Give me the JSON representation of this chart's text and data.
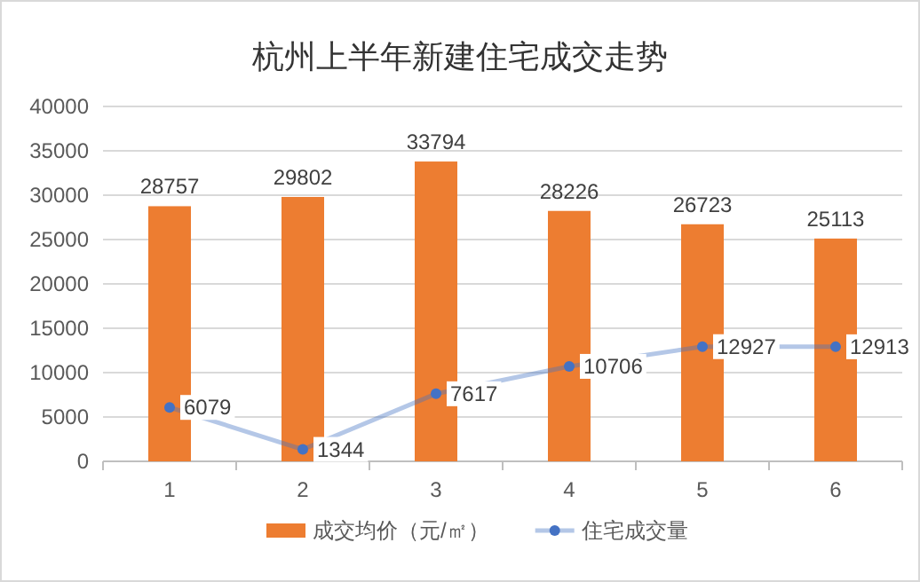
{
  "chart_data": {
    "type": "bar",
    "title": "杭州上半年新建住宅成交走势",
    "categories": [
      "1",
      "2",
      "3",
      "4",
      "5",
      "6"
    ],
    "series": [
      {
        "name": "成交均价（元/㎡）",
        "color": "#ed7d31",
        "values": [
          28757,
          29802,
          33794,
          28226,
          26723,
          25113
        ]
      },
      {
        "name": "住宅成交量",
        "type": "line",
        "color": "#4472c4",
        "marker": "circle",
        "values": [
          6079,
          1344,
          7617,
          10706,
          12927,
          12913
        ]
      }
    ],
    "ylim": [
      0,
      40000
    ],
    "yticks": [
      0,
      5000,
      10000,
      15000,
      20000,
      25000,
      30000,
      35000,
      40000
    ],
    "grid": "y",
    "legend": "bottom",
    "data_labels": true
  }
}
